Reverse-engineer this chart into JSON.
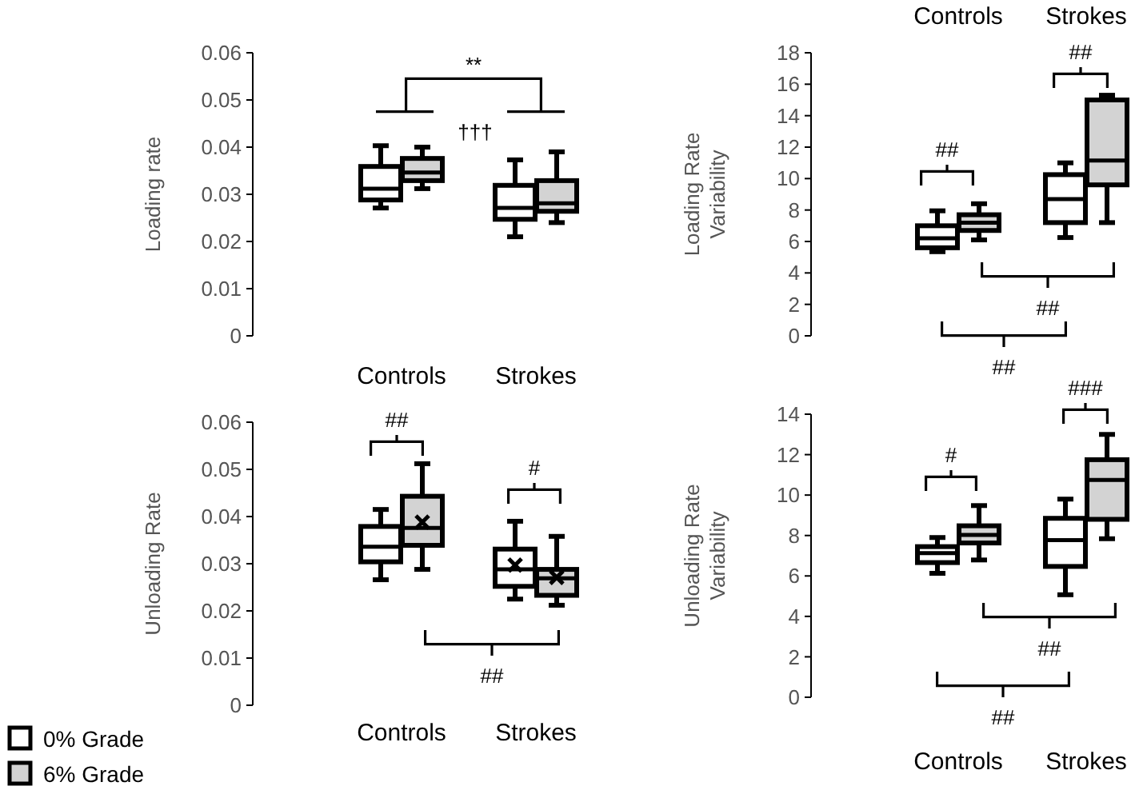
{
  "chart_data": [
    {
      "type": "box",
      "ylabel": "Loading rate",
      "categories": [
        "Controls",
        "Strokes"
      ],
      "ylim": [
        0,
        0.06
      ],
      "yticks": [
        0,
        0.01,
        0.02,
        0.03,
        0.04,
        0.05,
        0.06
      ],
      "series": [
        {
          "color": "#ffffff",
          "boxes": [
            {
              "low": 0.0271,
              "q1": 0.0288,
              "median": 0.0312,
              "q3": 0.0359,
              "high": 0.0403
            },
            {
              "low": 0.021,
              "q1": 0.0247,
              "median": 0.0271,
              "q3": 0.0319,
              "high": 0.0373
            }
          ]
        },
        {
          "color": "#d3d3d3",
          "boxes": [
            {
              "low": 0.0312,
              "q1": 0.0329,
              "median": 0.0346,
              "q3": 0.0376,
              "high": 0.04
            },
            {
              "low": 0.024,
              "q1": 0.0264,
              "median": 0.0281,
              "q3": 0.0329,
              "high": 0.039
            }
          ]
        }
      ],
      "annotations": [
        "**",
        "†††"
      ]
    },
    {
      "type": "box",
      "ylabel": "Loading Rate\nVariability",
      "categories": [
        "Controls",
        "Strokes"
      ],
      "ylim": [
        0,
        18
      ],
      "yticks": [
        0,
        2,
        4,
        6,
        8,
        10,
        12,
        14,
        16,
        18
      ],
      "series": [
        {
          "color": "#ffffff",
          "boxes": [
            {
              "low": 5.35,
              "q1": 5.6,
              "median": 6.2,
              "q3": 7.0,
              "high": 7.95
            },
            {
              "low": 6.25,
              "q1": 7.2,
              "median": 8.7,
              "q3": 10.25,
              "high": 11.0
            }
          ]
        },
        {
          "color": "#d3d3d3",
          "boxes": [
            {
              "low": 6.1,
              "q1": 6.7,
              "median": 7.2,
              "q3": 7.7,
              "high": 8.4
            },
            {
              "low": 7.2,
              "q1": 9.6,
              "median": 11.15,
              "q3": 15.0,
              "high": 15.3
            }
          ]
        }
      ],
      "annotations": [
        "##",
        "##",
        "##",
        "##"
      ]
    },
    {
      "type": "box",
      "ylabel": "Unloading Rate",
      "categories": [
        "Controls",
        "Strokes"
      ],
      "ylim": [
        0,
        0.06
      ],
      "yticks": [
        0,
        0.01,
        0.02,
        0.03,
        0.04,
        0.05,
        0.06
      ],
      "legend": "bottom left",
      "series": [
        {
          "name": "0% Grade",
          "color": "#ffffff",
          "boxes": [
            {
              "low": 0.0266,
              "q1": 0.0304,
              "median": 0.0336,
              "q3": 0.0379,
              "high": 0.0415
            },
            {
              "low": 0.0225,
              "q1": 0.0252,
              "median": 0.0288,
              "q3": 0.0331,
              "high": 0.039,
              "mean": 0.0297
            }
          ]
        },
        {
          "name": "6% Grade",
          "color": "#d3d3d3",
          "boxes": [
            {
              "low": 0.0288,
              "q1": 0.0339,
              "median": 0.0376,
              "q3": 0.0443,
              "high": 0.0512,
              "mean": 0.0388
            },
            {
              "low": 0.0212,
              "q1": 0.0233,
              "median": 0.0269,
              "q3": 0.0288,
              "high": 0.0358,
              "mean": 0.0271
            }
          ]
        }
      ],
      "annotations": [
        "##",
        "#",
        "##"
      ]
    },
    {
      "type": "box",
      "ylabel": "Unloading Rate\nVariability",
      "categories": [
        "Controls",
        "Strokes"
      ],
      "ylim": [
        0,
        14
      ],
      "yticks": [
        0,
        2,
        4,
        6,
        8,
        10,
        12,
        14
      ],
      "series": [
        {
          "color": "#ffffff",
          "boxes": [
            {
              "low": 6.13,
              "q1": 6.66,
              "median": 7.13,
              "q3": 7.45,
              "high": 7.9
            },
            {
              "low": 5.07,
              "q1": 6.47,
              "median": 7.77,
              "q3": 8.85,
              "high": 9.8
            }
          ]
        },
        {
          "color": "#d3d3d3",
          "boxes": [
            {
              "low": 6.79,
              "q1": 7.63,
              "median": 8.03,
              "q3": 8.48,
              "high": 9.48
            },
            {
              "low": 7.84,
              "q1": 8.8,
              "median": 10.75,
              "q3": 11.75,
              "high": 13.0
            }
          ]
        }
      ],
      "annotations": [
        "#",
        "###",
        "##",
        "##"
      ]
    }
  ]
}
